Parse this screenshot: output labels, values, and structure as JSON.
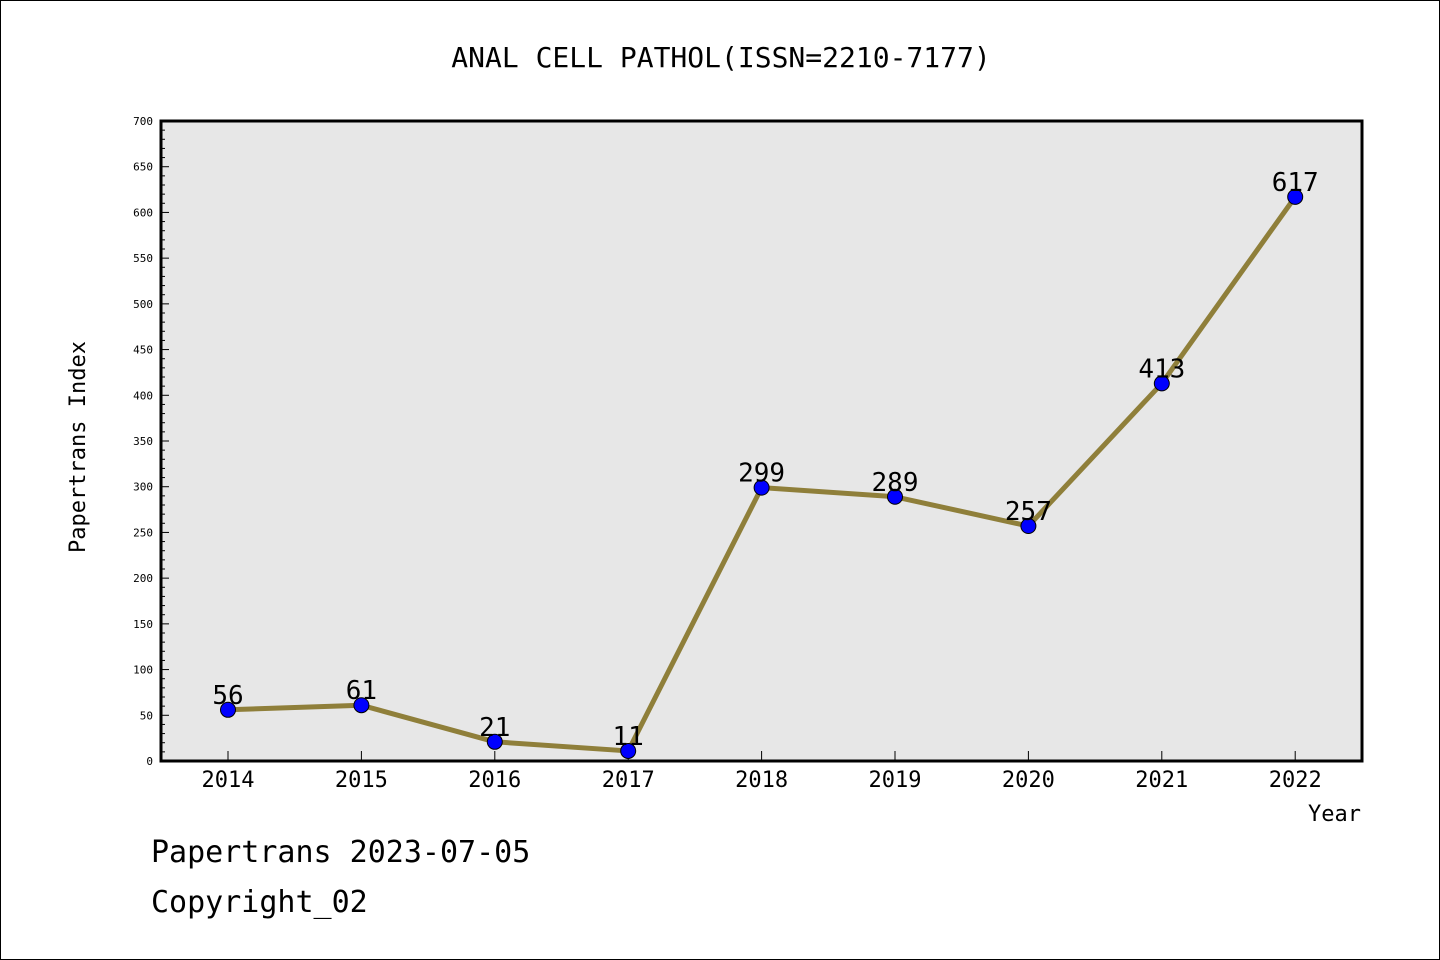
{
  "chart_data": {
    "type": "line",
    "title": "ANAL CELL PATHOL(ISSN=2210-7177)",
    "xlabel": "Year",
    "ylabel": "Papertrans Index",
    "categories": [
      "2014",
      "2015",
      "2016",
      "2017",
      "2018",
      "2019",
      "2020",
      "2021",
      "2022"
    ],
    "values": [
      56,
      61,
      21,
      11,
      299,
      289,
      257,
      413,
      617
    ],
    "ylim": [
      0,
      700
    ],
    "yticks": [
      0,
      50,
      100,
      150,
      200,
      250,
      300,
      350,
      400,
      450,
      500,
      550,
      600,
      650,
      700
    ],
    "grid": false,
    "line_color": "#8f7f3a",
    "marker_color": "#0000ff",
    "plot_background": "#e7e7e7"
  },
  "footer": {
    "date_line": "Papertrans 2023-07-05",
    "copyright_line": "Copyright_02"
  }
}
